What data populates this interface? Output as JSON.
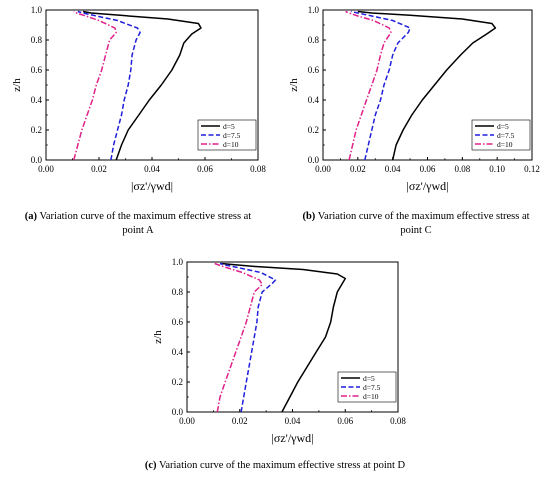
{
  "chart_data": [
    {
      "id": "a",
      "type": "line",
      "caption_tag": "(a)",
      "caption_text": "Variation curve of the maximum effective stress at point A",
      "ylabel": "z/h",
      "xlabel": "|σz'/γwd|",
      "xlim": [
        0,
        0.08
      ],
      "ylim": [
        0,
        1.0
      ],
      "xticks": [
        "0.00",
        "0.02",
        "0.04",
        "0.06",
        "0.08"
      ],
      "yticks": [
        "0.0",
        "0.2",
        "0.4",
        "0.6",
        "0.8",
        "1.0"
      ],
      "legend_position": "bottom-right",
      "series": [
        {
          "name": "d=5",
          "color": "#000000",
          "dash": "solid",
          "points": [
            [
              0.0265,
              0.0
            ],
            [
              0.0285,
              0.1
            ],
            [
              0.031,
              0.2
            ],
            [
              0.035,
              0.3
            ],
            [
              0.039,
              0.4
            ],
            [
              0.0435,
              0.5
            ],
            [
              0.0475,
              0.6
            ],
            [
              0.0505,
              0.7
            ],
            [
              0.052,
              0.78
            ],
            [
              0.055,
              0.84
            ],
            [
              0.0585,
              0.88
            ],
            [
              0.0575,
              0.91
            ],
            [
              0.046,
              0.94
            ],
            [
              0.028,
              0.965
            ],
            [
              0.017,
              0.98
            ],
            [
              0.014,
              0.99
            ]
          ]
        },
        {
          "name": "d=7.5",
          "color": "#1f1fdd",
          "dash": "dash",
          "points": [
            [
              0.0245,
              0.0
            ],
            [
              0.0255,
              0.1
            ],
            [
              0.027,
              0.2
            ],
            [
              0.0285,
              0.3
            ],
            [
              0.0295,
              0.4
            ],
            [
              0.031,
              0.5
            ],
            [
              0.032,
              0.6
            ],
            [
              0.0325,
              0.7
            ],
            [
              0.034,
              0.8
            ],
            [
              0.0355,
              0.85
            ],
            [
              0.0345,
              0.88
            ],
            [
              0.027,
              0.93
            ],
            [
              0.019,
              0.96
            ],
            [
              0.014,
              0.98
            ],
            [
              0.012,
              0.99
            ]
          ]
        },
        {
          "name": "d=10",
          "color": "#e0208a",
          "dash": "dashdot",
          "points": [
            [
              0.0105,
              0.0
            ],
            [
              0.012,
              0.1
            ],
            [
              0.0135,
              0.2
            ],
            [
              0.0155,
              0.3
            ],
            [
              0.0175,
              0.4
            ],
            [
              0.019,
              0.5
            ],
            [
              0.021,
              0.6
            ],
            [
              0.0225,
              0.7
            ],
            [
              0.024,
              0.8
            ],
            [
              0.0265,
              0.85
            ],
            [
              0.026,
              0.88
            ],
            [
              0.02,
              0.93
            ],
            [
              0.015,
              0.96
            ],
            [
              0.0115,
              0.98
            ],
            [
              0.0105,
              0.99
            ]
          ]
        }
      ]
    },
    {
      "id": "b",
      "type": "line",
      "caption_tag": "(b)",
      "caption_text": "Variation curve of the maximum effective stress at point C",
      "ylabel": "z/h",
      "xlabel": "|σz'/γwd|",
      "xlim": [
        0,
        0.12
      ],
      "ylim": [
        0,
        1.0
      ],
      "xticks": [
        "0.00",
        "0.02",
        "0.04",
        "0.06",
        "0.08",
        "0.10",
        "0.12"
      ],
      "yticks": [
        "0.0",
        "0.2",
        "0.4",
        "0.6",
        "0.8",
        "1.0"
      ],
      "legend_position": "bottom-right",
      "series": [
        {
          "name": "d=5",
          "color": "#000000",
          "dash": "solid",
          "points": [
            [
              0.04,
              0.0
            ],
            [
              0.042,
              0.1
            ],
            [
              0.046,
              0.2
            ],
            [
              0.051,
              0.3
            ],
            [
              0.057,
              0.4
            ],
            [
              0.064,
              0.5
            ],
            [
              0.071,
              0.6
            ],
            [
              0.079,
              0.7
            ],
            [
              0.086,
              0.78
            ],
            [
              0.094,
              0.84
            ],
            [
              0.099,
              0.88
            ],
            [
              0.097,
              0.91
            ],
            [
              0.08,
              0.94
            ],
            [
              0.05,
              0.965
            ],
            [
              0.028,
              0.98
            ],
            [
              0.02,
              0.99
            ]
          ]
        },
        {
          "name": "d=7.5",
          "color": "#1f1fdd",
          "dash": "dash",
          "points": [
            [
              0.024,
              0.0
            ],
            [
              0.026,
              0.1
            ],
            [
              0.028,
              0.2
            ],
            [
              0.03,
              0.3
            ],
            [
              0.033,
              0.4
            ],
            [
              0.035,
              0.5
            ],
            [
              0.038,
              0.6
            ],
            [
              0.04,
              0.7
            ],
            [
              0.043,
              0.78
            ],
            [
              0.049,
              0.85
            ],
            [
              0.05,
              0.88
            ],
            [
              0.04,
              0.93
            ],
            [
              0.028,
              0.96
            ],
            [
              0.02,
              0.98
            ],
            [
              0.016,
              0.99
            ]
          ]
        },
        {
          "name": "d=10",
          "color": "#e0208a",
          "dash": "dashdot",
          "points": [
            [
              0.015,
              0.0
            ],
            [
              0.017,
              0.1
            ],
            [
              0.019,
              0.2
            ],
            [
              0.022,
              0.3
            ],
            [
              0.025,
              0.4
            ],
            [
              0.028,
              0.5
            ],
            [
              0.031,
              0.6
            ],
            [
              0.033,
              0.7
            ],
            [
              0.035,
              0.78
            ],
            [
              0.039,
              0.85
            ],
            [
              0.038,
              0.88
            ],
            [
              0.029,
              0.93
            ],
            [
              0.02,
              0.96
            ],
            [
              0.015,
              0.98
            ],
            [
              0.013,
              0.99
            ]
          ]
        }
      ]
    },
    {
      "id": "c",
      "type": "line",
      "caption_tag": "(c)",
      "caption_text": "Variation curve of the maximum effective stress at point D",
      "ylabel": "z/h",
      "xlabel": "|σz'/γwd|",
      "xlim": [
        0,
        0.08
      ],
      "ylim": [
        0,
        1.0
      ],
      "xticks": [
        "0.00",
        "0.02",
        "0.04",
        "0.06",
        "0.08"
      ],
      "yticks": [
        "0.0",
        "0.2",
        "0.4",
        "0.6",
        "0.8",
        "1.0"
      ],
      "legend_position": "bottom-right",
      "series": [
        {
          "name": "d=5",
          "color": "#000000",
          "dash": "solid",
          "points": [
            [
              0.036,
              0.0
            ],
            [
              0.039,
              0.1
            ],
            [
              0.042,
              0.2
            ],
            [
              0.0455,
              0.3
            ],
            [
              0.049,
              0.4
            ],
            [
              0.0525,
              0.5
            ],
            [
              0.0545,
              0.6
            ],
            [
              0.0555,
              0.7
            ],
            [
              0.057,
              0.8
            ],
            [
              0.059,
              0.86
            ],
            [
              0.06,
              0.89
            ],
            [
              0.057,
              0.92
            ],
            [
              0.044,
              0.95
            ],
            [
              0.026,
              0.97
            ],
            [
              0.016,
              0.985
            ],
            [
              0.013,
              0.99
            ]
          ]
        },
        {
          "name": "d=7.5",
          "color": "#1f1fdd",
          "dash": "dash",
          "points": [
            [
              0.0205,
              0.0
            ],
            [
              0.0215,
              0.1
            ],
            [
              0.0225,
              0.2
            ],
            [
              0.0235,
              0.3
            ],
            [
              0.0245,
              0.4
            ],
            [
              0.0255,
              0.5
            ],
            [
              0.0265,
              0.6
            ],
            [
              0.027,
              0.7
            ],
            [
              0.0285,
              0.8
            ],
            [
              0.0325,
              0.86
            ],
            [
              0.0335,
              0.88
            ],
            [
              0.028,
              0.93
            ],
            [
              0.02,
              0.96
            ],
            [
              0.0145,
              0.98
            ],
            [
              0.0125,
              0.99
            ]
          ]
        },
        {
          "name": "d=10",
          "color": "#e0208a",
          "dash": "dashdot",
          "points": [
            [
              0.0115,
              0.0
            ],
            [
              0.0125,
              0.1
            ],
            [
              0.0145,
              0.2
            ],
            [
              0.0165,
              0.3
            ],
            [
              0.0185,
              0.4
            ],
            [
              0.0205,
              0.5
            ],
            [
              0.0225,
              0.6
            ],
            [
              0.024,
              0.7
            ],
            [
              0.0255,
              0.8
            ],
            [
              0.0285,
              0.85
            ],
            [
              0.0275,
              0.88
            ],
            [
              0.021,
              0.93
            ],
            [
              0.0155,
              0.96
            ],
            [
              0.012,
              0.98
            ],
            [
              0.0105,
              0.99
            ]
          ]
        }
      ]
    }
  ]
}
